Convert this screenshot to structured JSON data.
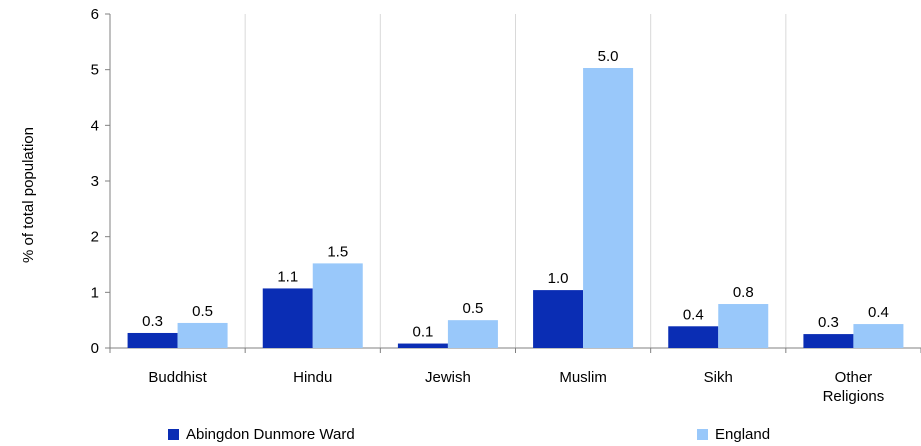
{
  "chart_data": {
    "type": "bar",
    "title": "",
    "xlabel": "",
    "ylabel": "% of total population",
    "ylim": [
      0,
      6
    ],
    "yticks": [
      0,
      1,
      2,
      3,
      4,
      5,
      6
    ],
    "grid": "vertical separators between categories",
    "legend_position": "bottom",
    "categories": [
      "Buddhist",
      "Hindu",
      "Jewish",
      "Muslim",
      "Sikh",
      "Other Religions"
    ],
    "category_lines": [
      [
        "Buddhist"
      ],
      [
        "Hindu"
      ],
      [
        "Jewish"
      ],
      [
        "Muslim"
      ],
      [
        "Sikh"
      ],
      [
        "Other",
        "Religions"
      ]
    ],
    "series": [
      {
        "name": "Abingdon Dunmore Ward",
        "color": "#0a2db4",
        "values": [
          0.27,
          1.07,
          0.08,
          1.04,
          0.39,
          0.25
        ],
        "labels": [
          "0.3",
          "1.1",
          "0.1",
          "1.0",
          "0.4",
          "0.3"
        ]
      },
      {
        "name": "England",
        "color": "#99c8fa",
        "values": [
          0.45,
          1.52,
          0.5,
          5.03,
          0.79,
          0.43
        ],
        "labels": [
          "0.5",
          "1.5",
          "0.5",
          "5.0",
          "0.8",
          "0.4"
        ]
      }
    ]
  }
}
